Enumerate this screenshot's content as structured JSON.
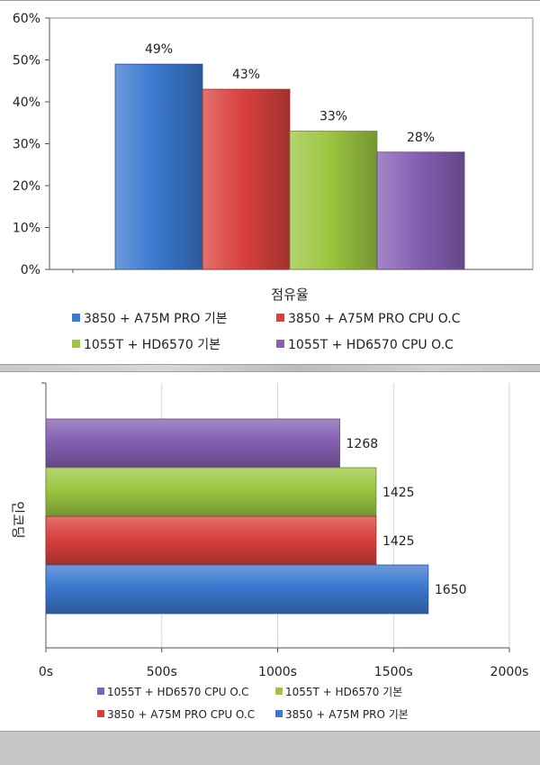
{
  "chart_data": [
    {
      "type": "bar",
      "orientation": "vertical",
      "title": "",
      "xlabel": "점유율",
      "ylabel": "",
      "categories": [
        "점유율"
      ],
      "ylim": [
        0,
        60
      ],
      "y_ticks": [
        "0%",
        "10%",
        "20%",
        "30%",
        "40%",
        "50%",
        "60%"
      ],
      "series": [
        {
          "name": "3850 + A75M PRO 기본",
          "values": [
            49
          ],
          "label": "49%",
          "color": "#3b78cf"
        },
        {
          "name": "3850 + A75M PRO CPU O.C",
          "values": [
            43
          ],
          "label": "43%",
          "color": "#d9413d"
        },
        {
          "name": "1055T + HD6570 기본",
          "values": [
            33
          ],
          "label": "33%",
          "color": "#9cc641"
        },
        {
          "name": "1055T + HD6570 CPU O.C",
          "values": [
            28
          ],
          "label": "28%",
          "color": "#8560b3"
        }
      ],
      "grid": false,
      "legend": "bottom"
    },
    {
      "type": "bar",
      "orientation": "horizontal",
      "title": "",
      "xlabel": "",
      "ylabel": "인코딩",
      "categories": [
        "인코딩"
      ],
      "xlim": [
        0,
        2000
      ],
      "x_ticks": [
        "0s",
        "500s",
        "1000s",
        "1500s",
        "2000s"
      ],
      "series": [
        {
          "name": "1055T + HD6570 CPU O.C",
          "values": [
            1268
          ],
          "label": "1268",
          "color": "#8560b3"
        },
        {
          "name": "1055T + HD6570 기본",
          "values": [
            1425
          ],
          "label": "1425",
          "color": "#9cc641"
        },
        {
          "name": "3850 + A75M PRO CPU O.C",
          "values": [
            1425
          ],
          "label": "1425",
          "color": "#d9413d"
        },
        {
          "name": "3850 + A75M PRO 기본",
          "values": [
            1650
          ],
          "label": "1650",
          "color": "#3b78cf"
        }
      ],
      "grid": true,
      "legend": "bottom"
    }
  ]
}
